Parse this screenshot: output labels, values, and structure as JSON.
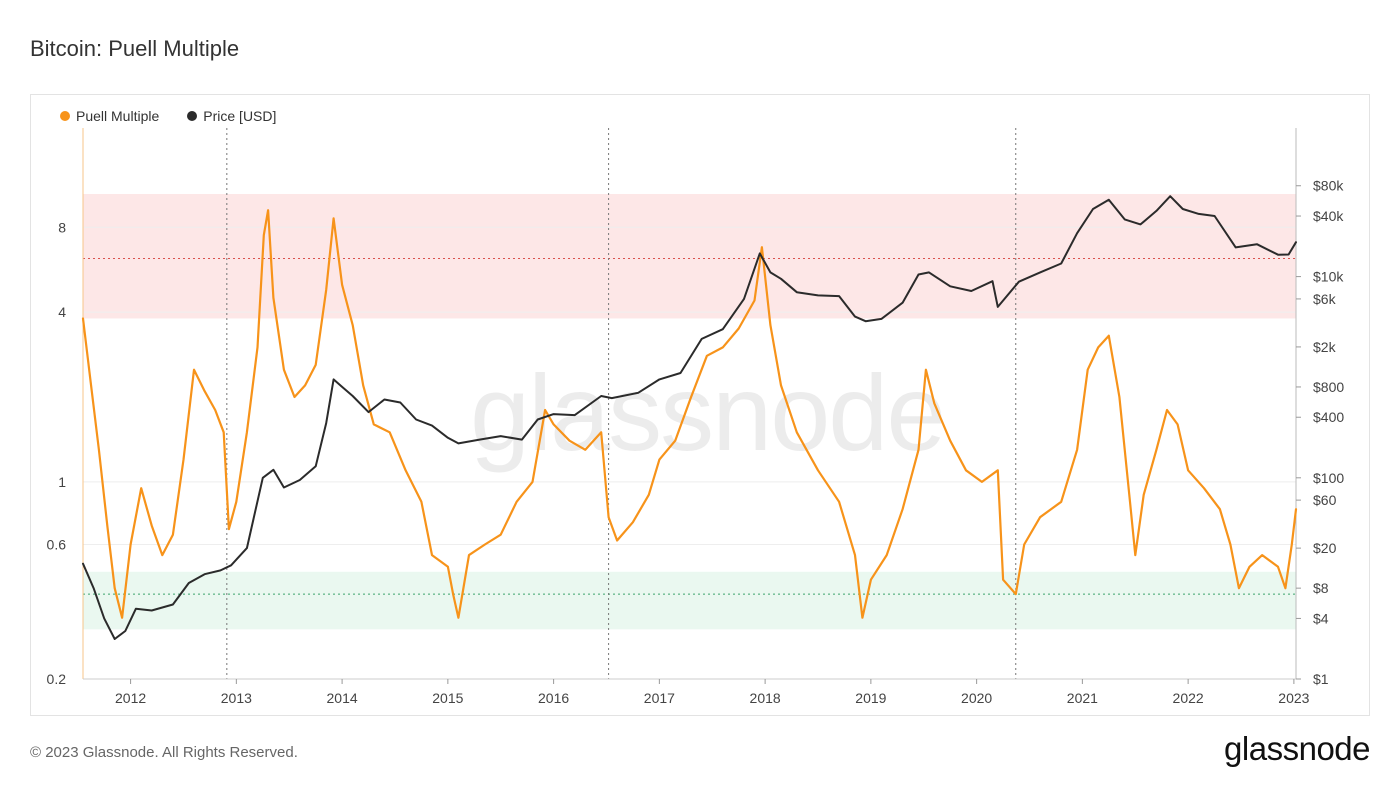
{
  "title": "Bitcoin: Puell Multiple",
  "footer": {
    "copyright": "© 2023 Glassnode. All Rights Reserved.",
    "logo": "glassnode"
  },
  "watermark": "glassnode",
  "colors": {
    "puell": "#f7931a",
    "price": "#2b2b2b",
    "red_band": "#fde3e3",
    "green_band": "#e6f7ed",
    "red_line": "#d9534f",
    "green_line": "#3aa36b"
  },
  "chart_data": {
    "type": "line",
    "legend": [
      {
        "name": "Puell Multiple",
        "color": "#f7931a"
      },
      {
        "name": "Price [USD]",
        "color": "#2b2b2b"
      }
    ],
    "legend_position": "top-left",
    "x_ticks": [
      "2012",
      "2013",
      "2014",
      "2015",
      "2016",
      "2017",
      "2018",
      "2019",
      "2020",
      "2021",
      "2022",
      "2023"
    ],
    "xlim": [
      2011.55,
      2023.02
    ],
    "y_left": {
      "scale": "log",
      "lim": [
        0.2,
        18
      ],
      "ticks": [
        0.2,
        0.6,
        1,
        4,
        8
      ],
      "tick_labels": [
        "0.2",
        "0.6",
        "1",
        "4",
        "8"
      ]
    },
    "y_right": {
      "scale": "log",
      "lim": [
        1,
        300000
      ],
      "ticks": [
        1,
        4,
        8,
        20,
        60,
        100,
        400,
        800,
        2000,
        6000,
        10000,
        40000,
        80000
      ],
      "tick_labels": [
        "$1",
        "$4",
        "$8",
        "$20",
        "$60",
        "$100",
        "$400",
        "$800",
        "$2k",
        "$6k",
        "$10k",
        "$40k",
        "$80k"
      ]
    },
    "bands": [
      {
        "zone": "red",
        "y_from": 3.8,
        "y_to": 10.5,
        "mid": 6.2
      },
      {
        "zone": "green",
        "y_from": 0.3,
        "y_to": 0.48,
        "mid": 0.4
      }
    ],
    "halvings": [
      2012.91,
      2016.52,
      2020.37
    ],
    "series": [
      {
        "name": "Puell Multiple",
        "axis": "left",
        "points": [
          [
            2011.55,
            3.8
          ],
          [
            2011.62,
            2.3
          ],
          [
            2011.7,
            1.3
          ],
          [
            2011.78,
            0.7
          ],
          [
            2011.85,
            0.42
          ],
          [
            2011.92,
            0.33
          ],
          [
            2012.0,
            0.6
          ],
          [
            2012.1,
            0.95
          ],
          [
            2012.2,
            0.7
          ],
          [
            2012.3,
            0.55
          ],
          [
            2012.4,
            0.65
          ],
          [
            2012.5,
            1.2
          ],
          [
            2012.6,
            2.5
          ],
          [
            2012.7,
            2.1
          ],
          [
            2012.8,
            1.8
          ],
          [
            2012.88,
            1.5
          ],
          [
            2012.93,
            0.68
          ],
          [
            2013.0,
            0.85
          ],
          [
            2013.1,
            1.5
          ],
          [
            2013.2,
            3.0
          ],
          [
            2013.26,
            7.5
          ],
          [
            2013.3,
            9.2
          ],
          [
            2013.35,
            4.5
          ],
          [
            2013.45,
            2.5
          ],
          [
            2013.55,
            2.0
          ],
          [
            2013.65,
            2.2
          ],
          [
            2013.75,
            2.6
          ],
          [
            2013.85,
            4.8
          ],
          [
            2013.92,
            8.6
          ],
          [
            2014.0,
            5.0
          ],
          [
            2014.1,
            3.6
          ],
          [
            2014.2,
            2.2
          ],
          [
            2014.3,
            1.6
          ],
          [
            2014.45,
            1.5
          ],
          [
            2014.6,
            1.1
          ],
          [
            2014.75,
            0.85
          ],
          [
            2014.85,
            0.55
          ],
          [
            2015.0,
            0.5
          ],
          [
            2015.05,
            0.4
          ],
          [
            2015.1,
            0.33
          ],
          [
            2015.2,
            0.55
          ],
          [
            2015.35,
            0.6
          ],
          [
            2015.5,
            0.65
          ],
          [
            2015.65,
            0.85
          ],
          [
            2015.8,
            1.0
          ],
          [
            2015.92,
            1.8
          ],
          [
            2016.0,
            1.6
          ],
          [
            2016.15,
            1.4
          ],
          [
            2016.3,
            1.3
          ],
          [
            2016.45,
            1.5
          ],
          [
            2016.52,
            0.75
          ],
          [
            2016.6,
            0.62
          ],
          [
            2016.75,
            0.72
          ],
          [
            2016.9,
            0.9
          ],
          [
            2017.0,
            1.2
          ],
          [
            2017.15,
            1.4
          ],
          [
            2017.3,
            2.0
          ],
          [
            2017.45,
            2.8
          ],
          [
            2017.6,
            3.0
          ],
          [
            2017.75,
            3.5
          ],
          [
            2017.9,
            4.4
          ],
          [
            2017.97,
            6.8
          ],
          [
            2018.05,
            3.6
          ],
          [
            2018.15,
            2.2
          ],
          [
            2018.3,
            1.5
          ],
          [
            2018.5,
            1.1
          ],
          [
            2018.7,
            0.85
          ],
          [
            2018.85,
            0.55
          ],
          [
            2018.92,
            0.33
          ],
          [
            2019.0,
            0.45
          ],
          [
            2019.15,
            0.55
          ],
          [
            2019.3,
            0.8
          ],
          [
            2019.45,
            1.3
          ],
          [
            2019.52,
            2.5
          ],
          [
            2019.6,
            1.9
          ],
          [
            2019.75,
            1.4
          ],
          [
            2019.9,
            1.1
          ],
          [
            2020.05,
            1.0
          ],
          [
            2020.2,
            1.1
          ],
          [
            2020.25,
            0.45
          ],
          [
            2020.37,
            0.4
          ],
          [
            2020.45,
            0.6
          ],
          [
            2020.6,
            0.75
          ],
          [
            2020.8,
            0.85
          ],
          [
            2020.95,
            1.3
          ],
          [
            2021.05,
            2.5
          ],
          [
            2021.15,
            3.0
          ],
          [
            2021.25,
            3.3
          ],
          [
            2021.35,
            2.0
          ],
          [
            2021.45,
            0.85
          ],
          [
            2021.5,
            0.55
          ],
          [
            2021.58,
            0.9
          ],
          [
            2021.7,
            1.3
          ],
          [
            2021.8,
            1.8
          ],
          [
            2021.9,
            1.6
          ],
          [
            2022.0,
            1.1
          ],
          [
            2022.15,
            0.95
          ],
          [
            2022.3,
            0.8
          ],
          [
            2022.4,
            0.6
          ],
          [
            2022.48,
            0.42
          ],
          [
            2022.58,
            0.5
          ],
          [
            2022.7,
            0.55
          ],
          [
            2022.85,
            0.5
          ],
          [
            2022.92,
            0.42
          ],
          [
            2022.98,
            0.6
          ],
          [
            2023.02,
            0.8
          ]
        ]
      },
      {
        "name": "Price [USD]",
        "axis": "right",
        "points": [
          [
            2011.55,
            14
          ],
          [
            2011.65,
            8
          ],
          [
            2011.75,
            4
          ],
          [
            2011.85,
            2.5
          ],
          [
            2011.95,
            3
          ],
          [
            2012.05,
            5
          ],
          [
            2012.2,
            4.8
          ],
          [
            2012.4,
            5.5
          ],
          [
            2012.55,
            9
          ],
          [
            2012.7,
            11
          ],
          [
            2012.85,
            12
          ],
          [
            2012.95,
            13.5
          ],
          [
            2013.1,
            20
          ],
          [
            2013.25,
            100
          ],
          [
            2013.35,
            120
          ],
          [
            2013.45,
            80
          ],
          [
            2013.6,
            95
          ],
          [
            2013.75,
            130
          ],
          [
            2013.85,
            350
          ],
          [
            2013.92,
            950
          ],
          [
            2014.0,
            800
          ],
          [
            2014.1,
            650
          ],
          [
            2014.25,
            450
          ],
          [
            2014.4,
            600
          ],
          [
            2014.55,
            560
          ],
          [
            2014.7,
            380
          ],
          [
            2014.85,
            330
          ],
          [
            2015.0,
            250
          ],
          [
            2015.1,
            220
          ],
          [
            2015.3,
            240
          ],
          [
            2015.5,
            260
          ],
          [
            2015.7,
            240
          ],
          [
            2015.85,
            380
          ],
          [
            2016.0,
            430
          ],
          [
            2016.2,
            420
          ],
          [
            2016.45,
            650
          ],
          [
            2016.55,
            620
          ],
          [
            2016.8,
            700
          ],
          [
            2017.0,
            950
          ],
          [
            2017.2,
            1100
          ],
          [
            2017.4,
            2400
          ],
          [
            2017.6,
            3000
          ],
          [
            2017.8,
            6000
          ],
          [
            2017.95,
            17000
          ],
          [
            2018.05,
            11000
          ],
          [
            2018.15,
            9500
          ],
          [
            2018.3,
            7000
          ],
          [
            2018.5,
            6500
          ],
          [
            2018.7,
            6400
          ],
          [
            2018.85,
            4000
          ],
          [
            2018.95,
            3600
          ],
          [
            2019.1,
            3800
          ],
          [
            2019.3,
            5500
          ],
          [
            2019.45,
            10500
          ],
          [
            2019.55,
            11000
          ],
          [
            2019.75,
            8000
          ],
          [
            2019.95,
            7200
          ],
          [
            2020.15,
            9000
          ],
          [
            2020.2,
            5000
          ],
          [
            2020.4,
            8900
          ],
          [
            2020.6,
            11000
          ],
          [
            2020.8,
            13500
          ],
          [
            2020.95,
            27000
          ],
          [
            2021.1,
            47000
          ],
          [
            2021.25,
            58000
          ],
          [
            2021.4,
            37000
          ],
          [
            2021.55,
            33000
          ],
          [
            2021.7,
            45000
          ],
          [
            2021.83,
            63000
          ],
          [
            2021.95,
            47000
          ],
          [
            2022.1,
            42000
          ],
          [
            2022.25,
            40000
          ],
          [
            2022.45,
            19500
          ],
          [
            2022.65,
            21000
          ],
          [
            2022.85,
            16500
          ],
          [
            2022.95,
            16600
          ],
          [
            2023.02,
            22000
          ]
        ]
      }
    ]
  }
}
